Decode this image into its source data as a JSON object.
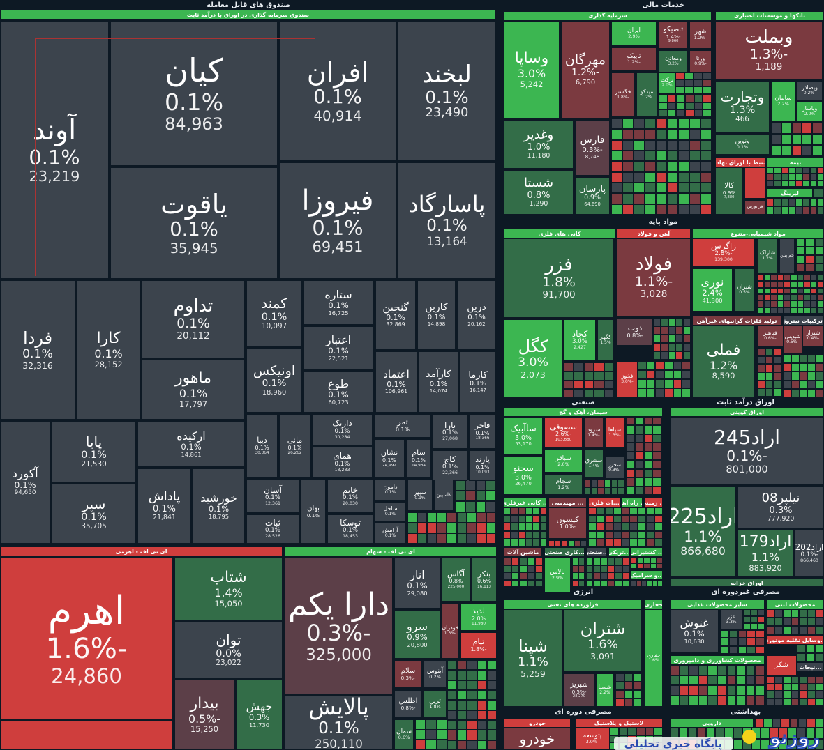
{
  "palette": {
    "g": "#3cb651",
    "dg": "#336d48",
    "r": "#cf3e3d",
    "dr": "#7b3a40",
    "mr": "#5c3f48",
    "n": "#3c444d",
    "bg": "#0d1924"
  },
  "groups": [
    "صندوق های قابل معامله",
    "خدمات مالی",
    "مواد پایه",
    "صنعتی",
    "اوراق درآمد ثابت",
    "انرژی",
    "مصرفی غیردوره ای",
    "مصرفی دوره ای",
    "بهداشتی"
  ],
  "headers": [
    {
      "title": "صندوق سرمایه گذاری در اوراق با درآمد ثابت",
      "tone": "g"
    },
    {
      "title": "ای تی اف - اهرمی",
      "tone": "r"
    },
    {
      "title": "ای تی اف - سهام",
      "tone": "g"
    },
    {
      "title": "سرمایه گذاری",
      "tone": "g"
    },
    {
      "title": "بانکها و موسسات اعتباری",
      "tone": "g"
    },
    {
      "title": "...تبط با اوراق بهادار",
      "tone": "r"
    },
    {
      "title": "بیمه",
      "tone": "g"
    },
    {
      "title": "لیزینگ",
      "tone": "g"
    },
    {
      "title": "کانی های فلزی",
      "tone": "g"
    },
    {
      "title": "آهن و فولاد",
      "tone": "r"
    },
    {
      "title": "مواد شیمیایی-متنوع",
      "tone": "g"
    },
    {
      "title": "تولید فلزات گرانبهای غیرآهن",
      "tone": "dr"
    },
    {
      "title": "...ترکیبات نیتروژن",
      "tone": "n"
    },
    {
      "title": "سیمان، آهک و گچ",
      "tone": "g"
    },
    {
      "title": "... کانی غیرفلزی",
      "tone": "g"
    },
    {
      "title": "... مهندسی",
      "tone": "dr"
    },
    {
      "title": "...ات فلزی",
      "tone": "r"
    },
    {
      "title": "... راه آهن",
      "tone": "g"
    },
    {
      "title": "... زمینی",
      "tone": "r"
    },
    {
      "title": "ماشین آلات",
      "tone": "dr"
    },
    {
      "title": "...کاری صنعتی",
      "tone": "dg"
    },
    {
      "title": "...صنعتی",
      "tone": "n"
    },
    {
      "title": "...تریکی",
      "tone": "g"
    },
    {
      "title": "... کشتیرانی",
      "tone": "g"
    },
    {
      "title": "...و سرامیک",
      "tone": "g"
    },
    {
      "title": "اوراق کوپنی",
      "tone": "g"
    },
    {
      "title": "اوراق خزانه",
      "tone": "dg"
    },
    {
      "title": "فراورده های نفتی",
      "tone": "g"
    },
    {
      "title": "حفاری",
      "tone": "g"
    },
    {
      "title": "سایر محصولات غذایی",
      "tone": "g"
    },
    {
      "title": "محصولات لبنی",
      "tone": "g"
    },
    {
      "title": "...وسایل نقلیه موتوری",
      "tone": "r"
    },
    {
      "title": "محصولات کشاورزی و دامپروری",
      "tone": "g"
    },
    {
      "title": "...نیجات",
      "tone": "n"
    },
    {
      "title": "خودرو",
      "tone": "r"
    },
    {
      "title": "لاستیک و پلاستیک",
      "tone": "r"
    },
    {
      "title": "دارویی",
      "tone": "g"
    }
  ],
  "tiles": [
    {
      "name": "آوند",
      "pct": "0.1%",
      "value": "23,219",
      "tone": "n"
    },
    {
      "name": "کیان",
      "pct": "0.1%",
      "value": "84,963",
      "tone": "n"
    },
    {
      "name": "افران",
      "pct": "0.1%",
      "value": "40,914",
      "tone": "n"
    },
    {
      "name": "لبخند",
      "pct": "0.1%",
      "value": "23,490",
      "tone": "n"
    },
    {
      "name": "یاقوت",
      "pct": "0.1%",
      "value": "35,945",
      "tone": "n"
    },
    {
      "name": "فیروزا",
      "pct": "0.1%",
      "value": "69,451",
      "tone": "n"
    },
    {
      "name": "پاسارگاد",
      "pct": "0.1%",
      "value": "13,164",
      "tone": "n"
    },
    {
      "name": "فردا",
      "pct": "0.1%",
      "value": "32,316",
      "tone": "n"
    },
    {
      "name": "کارا",
      "pct": "0.1%",
      "value": "28,152",
      "tone": "n"
    },
    {
      "name": "تداوم",
      "pct": "0.1%",
      "value": "20,112",
      "tone": "n"
    },
    {
      "name": "ماهور",
      "pct": "0.1%",
      "value": "17,797",
      "tone": "n"
    },
    {
      "name": "کمند",
      "pct": "0.1%",
      "value": "10,097",
      "tone": "n"
    },
    {
      "name": "اونیکس",
      "pct": "0.1%",
      "value": "18,960",
      "tone": "n"
    },
    {
      "name": "ستاره",
      "pct": "0.1%",
      "value": "16,725",
      "tone": "n"
    },
    {
      "name": "اعتبار",
      "pct": "0.1%",
      "value": "22,521",
      "tone": "n"
    },
    {
      "name": "طوع",
      "pct": "0.1%",
      "value": "60,723",
      "tone": "n"
    },
    {
      "name": "گنجین",
      "pct": "0.1%",
      "value": "32,869",
      "tone": "n"
    },
    {
      "name": "کارین",
      "pct": "0.1%",
      "value": "14,898",
      "tone": "n"
    },
    {
      "name": "درین",
      "pct": "0.1%",
      "value": "20,162",
      "tone": "n"
    },
    {
      "name": "اعتماد",
      "pct": "0.1%",
      "value": "106,961",
      "tone": "n"
    },
    {
      "name": "کارآمد",
      "pct": "0.1%",
      "value": "14,074",
      "tone": "n"
    },
    {
      "name": "کارما",
      "pct": "0.1%",
      "value": "16,147",
      "tone": "n"
    },
    {
      "name": "آکورد",
      "pct": "0.1%",
      "value": "94,650",
      "tone": "n"
    },
    {
      "name": "پایا",
      "pct": "0.1%",
      "value": "21,530",
      "tone": "n"
    },
    {
      "name": "سپر",
      "pct": "0.1%",
      "value": "35,705",
      "tone": "n"
    },
    {
      "name": "ارکیده",
      "pct": "0.1%",
      "value": "14,861",
      "tone": "n"
    },
    {
      "name": "پاداش",
      "pct": "0.1%",
      "value": "21,841",
      "tone": "n"
    },
    {
      "name": "خورشید",
      "pct": "0.1%",
      "value": "18,795",
      "tone": "n"
    },
    {
      "name": "دیبا",
      "pct": "0.1%",
      "value": "30,364",
      "tone": "n"
    },
    {
      "name": "مانی",
      "pct": "0.1%",
      "value": "26,262",
      "tone": "n"
    },
    {
      "name": "داریک",
      "pct": "0.1%",
      "value": "30,284",
      "tone": "n"
    },
    {
      "name": "همای",
      "pct": "0.1%",
      "value": "18,283",
      "tone": "n"
    },
    {
      "name": "ثمر",
      "pct": "0.1%",
      "tone": "n"
    },
    {
      "name": "نشان",
      "pct": "0.1%",
      "value": "24,992",
      "tone": "n"
    },
    {
      "name": "سام",
      "pct": "0.1%",
      "value": "14,964",
      "tone": "n"
    },
    {
      "name": "یارا",
      "pct": "0.1%",
      "value": "27,068",
      "tone": "n"
    },
    {
      "name": "فاخر",
      "pct": "0.1%",
      "value": "18,366",
      "tone": "n"
    },
    {
      "name": "کاج",
      "pct": "0.1%",
      "value": "22,366",
      "tone": "n"
    },
    {
      "name": "پارند",
      "pct": "0.1%",
      "value": "10,093",
      "tone": "n"
    },
    {
      "name": "آسان",
      "pct": "0.1%",
      "value": "12,361",
      "tone": "n"
    },
    {
      "name": "ثبات",
      "pct": "0.1%",
      "value": "28,526",
      "tone": "n"
    },
    {
      "name": "بهان",
      "pct": "0.1%",
      "tone": "n"
    },
    {
      "name": "خاتم",
      "pct": "0.1%",
      "value": "20,030",
      "tone": "n"
    },
    {
      "name": "توسکا",
      "pct": "0.1%",
      "value": "18,453",
      "tone": "n"
    },
    {
      "name": "دامون",
      "pct": "0.1%",
      "tone": "n"
    },
    {
      "name": "ساحل",
      "pct": "0.1%",
      "tone": "n"
    },
    {
      "name": "آرامش",
      "pct": "0.1%",
      "tone": "n"
    },
    {
      "name": "سپهر",
      "pct": "0.1%",
      "tone": "n"
    },
    {
      "name": "کاسپین",
      "tone": "n"
    },
    {
      "name": "اهرم",
      "pct": "-1.6%",
      "value": "24,860",
      "tone": "r"
    },
    {
      "name": "شتاب",
      "pct": "1.4%",
      "value": "15,050",
      "tone": "dg"
    },
    {
      "name": "توان",
      "pct": "0.0%",
      "value": "23,022",
      "tone": "n"
    },
    {
      "name": "بیدار",
      "pct": "-0.5%",
      "value": "15,250",
      "tone": "mr"
    },
    {
      "name": "جهش",
      "pct": "0.3%",
      "value": "11,730",
      "tone": "dg"
    },
    {
      "name": "دارا یکم",
      "pct": "-0.3%",
      "value": "325,000",
      "tone": "mr"
    },
    {
      "name": "پالایش",
      "pct": "0.1%",
      "value": "250,110",
      "tone": "n"
    },
    {
      "name": "انار",
      "pct": "0.1%",
      "value": "29,080",
      "tone": "n"
    },
    {
      "name": "آگاس",
      "pct": "0.8%",
      "value": "225,000",
      "tone": "dg"
    },
    {
      "name": "بنکر",
      "pct": "0.6%",
      "value": "16,113",
      "tone": "dg"
    },
    {
      "name": "سرو",
      "pct": "0.9%",
      "value": "20,800",
      "tone": "dg"
    },
    {
      "name": "خودران",
      "pct": "-1.3%",
      "tone": "dr"
    },
    {
      "name": "لذیذ",
      "pct": "2.0%",
      "value": "11,980",
      "tone": "g"
    },
    {
      "name": "تیام",
      "pct": "-1.8%",
      "tone": "r"
    },
    {
      "name": "سلام",
      "pct": "-0.3%",
      "tone": "dr"
    },
    {
      "name": "آبنوس",
      "pct": "0.2%",
      "tone": "n"
    },
    {
      "name": "اطلس",
      "pct": "-0.8%",
      "tone": "n"
    },
    {
      "name": "ترین",
      "pct": "1.8%",
      "tone": "dg"
    },
    {
      "name": "سمان",
      "pct": "0.6%",
      "tone": "dg"
    },
    {
      "name": "وساپا",
      "pct": "3.0%",
      "value": "5,242",
      "tone": "g"
    },
    {
      "name": "مهرگان",
      "pct": "-1.2%",
      "value": "6,790",
      "tone": "dr"
    },
    {
      "name": "وغدیر",
      "pct": "1.0%",
      "value": "11,180",
      "tone": "dg"
    },
    {
      "name": "شستا",
      "pct": "0.8%",
      "value": "1,290",
      "tone": "dg"
    },
    {
      "name": "فارس",
      "pct": "-0.3%",
      "value": "8,748",
      "tone": "mr"
    },
    {
      "name": "پارسان",
      "pct": "0.9%",
      "value": "64,690",
      "tone": "dg"
    },
    {
      "name": "ایران",
      "pct": "2.9%",
      "tone": "g"
    },
    {
      "name": "تاصیکو",
      "pct": "-1.4%",
      "value": "9,860",
      "tone": "dr"
    },
    {
      "name": "شهر",
      "pct": "-1.2%",
      "tone": "dr"
    },
    {
      "name": "تاپیکو",
      "pct": "-1.2%",
      "tone": "dr"
    },
    {
      "name": "ومعادن",
      "pct": "3.2%",
      "tone": "dg"
    },
    {
      "name": "ورنا",
      "pct": "-0.9%",
      "tone": "dr"
    },
    {
      "name": "خگستر",
      "pct": "-1.8%",
      "tone": "dr"
    },
    {
      "name": "میدکو",
      "pct": "1.2%",
      "tone": "dg"
    },
    {
      "name": "برکت",
      "pct": "2.0%",
      "tone": "g"
    },
    {
      "name": "وبملت",
      "pct": "-1.3%",
      "value": "1,189",
      "tone": "dr"
    },
    {
      "name": "وتجارت",
      "pct": "1.3%",
      "value": "466",
      "tone": "dg"
    },
    {
      "name": "سامان",
      "pct": "2.2%",
      "tone": "g"
    },
    {
      "name": "وپصادر",
      "pct": "-0.2%",
      "tone": "n"
    },
    {
      "name": "وپاسار",
      "pct": "2.0%",
      "tone": "g"
    },
    {
      "name": "ونوین",
      "pct": "0.1%",
      "tone": "dg"
    },
    {
      "name": "کالا",
      "pct": "0.9%",
      "value": "7,880",
      "tone": "dg"
    },
    {
      "name": "فرابورس",
      "tone": "dr"
    },
    {
      "name": "فزر",
      "pct": "1.8%",
      "value": "91,700",
      "tone": "dg"
    },
    {
      "name": "کگل",
      "pct": "3.0%",
      "value": "2,073",
      "tone": "g"
    },
    {
      "name": "کچاد",
      "pct": "3.0%",
      "value": "2,427",
      "tone": "g"
    },
    {
      "name": "کگهر",
      "pct": "1.5%",
      "tone": "dg"
    },
    {
      "name": "فولاد",
      "pct": "-1.1%",
      "value": "3,028",
      "tone": "dr"
    },
    {
      "name": "ذوب",
      "pct": "-0.8%",
      "tone": "mr"
    },
    {
      "name": "فخوز",
      "pct": "-3.0%",
      "tone": "r"
    },
    {
      "name": "زاگرس",
      "pct": "-2.8%",
      "value": "139,300",
      "tone": "r"
    },
    {
      "name": "نوری",
      "pct": "2.4%",
      "value": "41,300",
      "tone": "g"
    },
    {
      "name": "شیران",
      "pct": "0.5%",
      "tone": "dg"
    },
    {
      "name": "شاراک",
      "pct": "1.2%",
      "tone": "dg"
    },
    {
      "name": "جم پیلن",
      "tone": "n"
    },
    {
      "name": "فملی",
      "pct": "1.2%",
      "value": "8,590",
      "tone": "dg"
    },
    {
      "name": "فباهنر",
      "pct": "-0.6%",
      "tone": "dr"
    },
    {
      "name": "شیراز",
      "pct": "-0.4%",
      "tone": "dr"
    },
    {
      "name": "شپدیس",
      "pct": "-0.5%",
      "tone": "dr"
    },
    {
      "name": "ساآبیک",
      "pct": "3.0%",
      "value": "53,170",
      "tone": "g"
    },
    {
      "name": "سجنو",
      "pct": "3.0%",
      "value": "26,470",
      "tone": "g"
    },
    {
      "name": "سصوفی",
      "pct": "-2.6%",
      "value": "103,660",
      "tone": "r"
    },
    {
      "name": "سباقر",
      "pct": "2.0%",
      "tone": "g"
    },
    {
      "name": "سجام",
      "pct": "1.2%",
      "tone": "dg"
    },
    {
      "name": "سرود",
      "pct": "-1.4%",
      "tone": "dr"
    },
    {
      "name": "سپاها",
      "pct": "-1.3%",
      "tone": "r"
    },
    {
      "name": "سشرق",
      "pct": "1.4%",
      "tone": "dg"
    },
    {
      "name": "سخزر",
      "pct": "-0.3%",
      "tone": "n"
    },
    {
      "name": "کیسون",
      "pct": "-1.0%",
      "tone": "dr"
    },
    {
      "name": "بالاس",
      "pct": "2.9%",
      "tone": "g"
    },
    {
      "name": "اراد245",
      "pct": "-0.1%",
      "value": "801,000",
      "tone": "n"
    },
    {
      "name": "اراد225",
      "pct": "1.1%",
      "value": "866,680",
      "tone": "dg"
    },
    {
      "name": "نیلپر08",
      "pct": "0.3%",
      "value": "777,920",
      "tone": "n"
    },
    {
      "name": "اراد179",
      "pct": "1.1%",
      "value": "883,920",
      "tone": "dg"
    },
    {
      "name": "اراد202",
      "pct": "-0.1%",
      "value": "866,460",
      "tone": "n"
    },
    {
      "name": "شپنا",
      "pct": "1.1%",
      "value": "5,259",
      "tone": "dg"
    },
    {
      "name": "شتران",
      "pct": "1.6%",
      "value": "3,091",
      "tone": "dg"
    },
    {
      "name": "شبریز",
      "pct": "-0.5%",
      "value": "28,270",
      "tone": "mr"
    },
    {
      "name": "شسپا",
      "pct": "2.2%",
      "tone": "g"
    },
    {
      "name": "حفاری",
      "pct": "1.6%",
      "tone": "g"
    },
    {
      "name": "غنوش",
      "pct": "0.1%",
      "value": "10,630",
      "tone": "n"
    },
    {
      "name": "غزر",
      "pct": "3.3%",
      "tone": "n"
    },
    {
      "name": "شکر",
      "tone": "r"
    },
    {
      "name": "خودرو",
      "tone": "dr"
    },
    {
      "name": "پتوسعه",
      "pct": "-3.0%",
      "tone": "r"
    }
  ],
  "watermark": {
    "logo": "روزنو",
    "tagline": "پایگاه خبری تحلیلی"
  }
}
